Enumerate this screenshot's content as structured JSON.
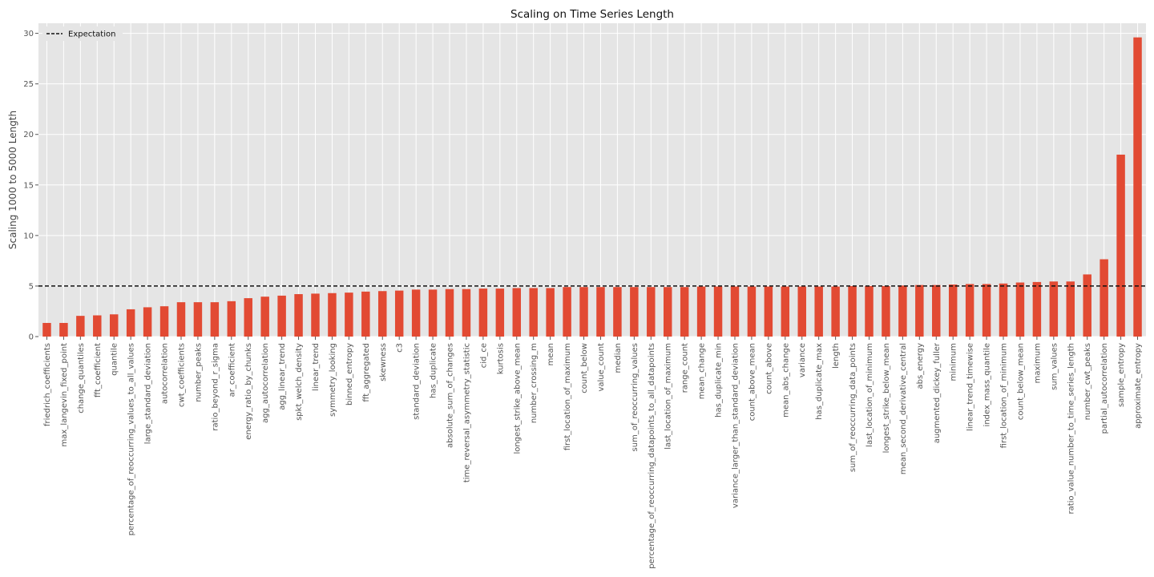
{
  "chart_data": {
    "type": "bar",
    "title": "Scaling on Time Series Length",
    "xlabel": "",
    "ylabel": "Scaling 1000 to 5000 Length",
    "ylim": [
      0,
      31
    ],
    "yticks": [
      0,
      5,
      10,
      15,
      20,
      25,
      30
    ],
    "grid": true,
    "legend_position": "top-left",
    "bar_color": "#E24A33",
    "background_color": "#E5E5E5",
    "reference_line": {
      "label": "Expectation",
      "value": 5,
      "style": "dashed",
      "color": "#111111"
    },
    "categories": [
      "friedrich_coefficients",
      "max_langevin_fixed_point",
      "change_quantiles",
      "fft_coefficient",
      "quantile",
      "percentage_of_reoccurring_values_to_all_values",
      "large_standard_deviation",
      "autocorrelation",
      "cwt_coefficients",
      "number_peaks",
      "ratio_beyond_r_sigma",
      "ar_coefficient",
      "energy_ratio_by_chunks",
      "agg_autocorrelation",
      "agg_linear_trend",
      "spkt_welch_density",
      "linear_trend",
      "symmetry_looking",
      "binned_entropy",
      "fft_aggregated",
      "skewness",
      "c3",
      "standard_deviation",
      "has_duplicate",
      "absolute_sum_of_changes",
      "time_reversal_asymmetry_statistic",
      "cid_ce",
      "kurtosis",
      "longest_strike_above_mean",
      "number_crossing_m",
      "mean",
      "first_location_of_maximum",
      "count_below",
      "value_count",
      "median",
      "sum_of_reoccurring_values",
      "percentage_of_reoccurring_datapoints_to_all_datapoints",
      "last_location_of_maximum",
      "range_count",
      "mean_change",
      "has_duplicate_min",
      "variance_larger_than_standard_deviation",
      "count_above_mean",
      "count_above",
      "mean_abs_change",
      "variance",
      "has_duplicate_max",
      "length",
      "sum_of_reoccurring_data_points",
      "last_location_of_minimum",
      "longest_strike_below_mean",
      "mean_second_derivative_central",
      "abs_energy",
      "augmented_dickey_fuller",
      "minimum",
      "linear_trend_timewise",
      "index_mass_quantile",
      "first_location_of_minimum",
      "count_below_mean",
      "maximum",
      "sum_values",
      "ratio_value_number_to_time_series_length",
      "number_cwt_peaks",
      "partial_autocorrelation",
      "sample_entropy",
      "approximate_entropy"
    ],
    "values": [
      1.35,
      1.35,
      2.05,
      2.1,
      2.2,
      2.7,
      2.9,
      3.0,
      3.4,
      3.4,
      3.4,
      3.5,
      3.8,
      3.95,
      4.05,
      4.2,
      4.25,
      4.3,
      4.35,
      4.45,
      4.5,
      4.55,
      4.65,
      4.65,
      4.7,
      4.7,
      4.75,
      4.75,
      4.8,
      4.8,
      4.8,
      4.9,
      4.9,
      4.9,
      4.9,
      4.9,
      4.9,
      4.9,
      4.9,
      4.95,
      4.95,
      4.95,
      4.95,
      4.95,
      4.95,
      4.95,
      4.95,
      4.95,
      5.0,
      5.0,
      5.0,
      5.05,
      5.1,
      5.1,
      5.15,
      5.2,
      5.2,
      5.25,
      5.35,
      5.4,
      5.45,
      5.45,
      6.15,
      7.65,
      18.0,
      29.6
    ]
  }
}
